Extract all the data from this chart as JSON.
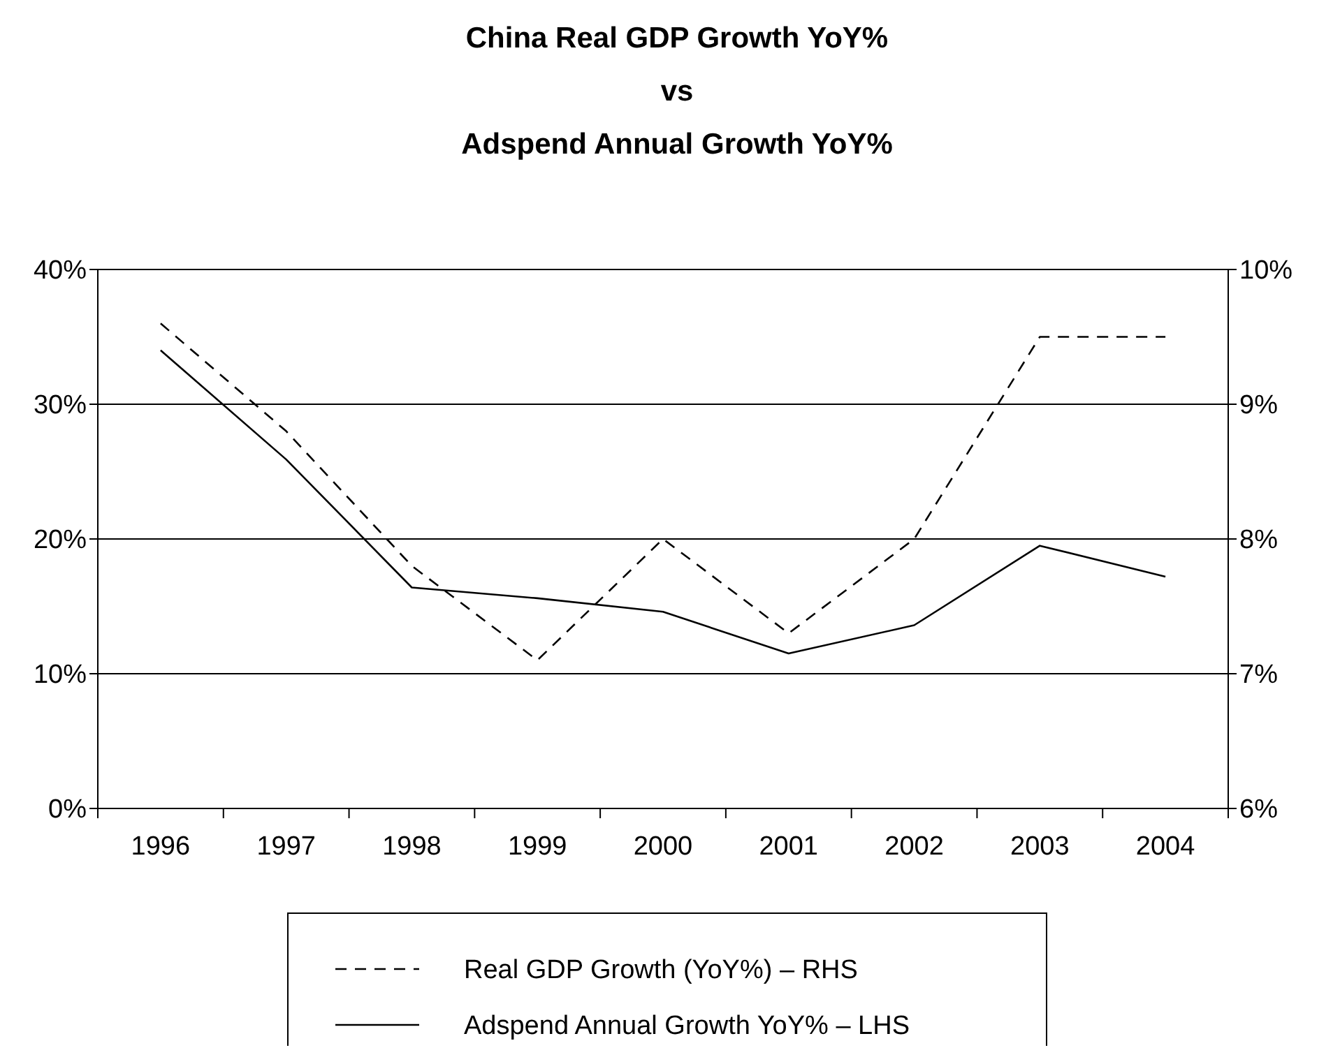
{
  "chart_data": {
    "type": "line",
    "title": "China Real GDP Growth YoY%\nvs\nAdspend Annual Growth YoY%",
    "categories": [
      "1996",
      "1997",
      "1998",
      "1999",
      "2000",
      "2001",
      "2002",
      "2003",
      "2004"
    ],
    "series": [
      {
        "name": "Real GDP Growth (YoY%) – RHS",
        "color": "#000000",
        "axis": "y2",
        "line_style": "dashed",
        "values": [
          9.6,
          8.8,
          7.8,
          7.1,
          8.0,
          7.3,
          8.0,
          9.5,
          9.5
        ]
      },
      {
        "name": "Adspend Annual Growth YoY% – LHS",
        "color": "#000000",
        "line_style": "solid",
        "values": [
          34.0,
          25.9,
          16.4,
          15.6,
          14.6,
          11.5,
          13.6,
          19.5,
          17.2
        ]
      }
    ],
    "ylim": [
      0,
      40
    ],
    "yticks": [
      {
        "value": 0,
        "label": "0%"
      },
      {
        "value": 10,
        "label": "10%"
      },
      {
        "value": 20,
        "label": "20%"
      },
      {
        "value": 30,
        "label": "30%"
      },
      {
        "value": 40,
        "label": "40%"
      }
    ],
    "y2lim": [
      6,
      10
    ],
    "y2ticks": [
      {
        "value": 6,
        "label": "6%"
      },
      {
        "value": 7,
        "label": "7%"
      },
      {
        "value": 8,
        "label": "8%"
      },
      {
        "value": 9,
        "label": "9%"
      },
      {
        "value": 10,
        "label": "10%"
      }
    ],
    "grid": "y",
    "legend": "bottom"
  }
}
